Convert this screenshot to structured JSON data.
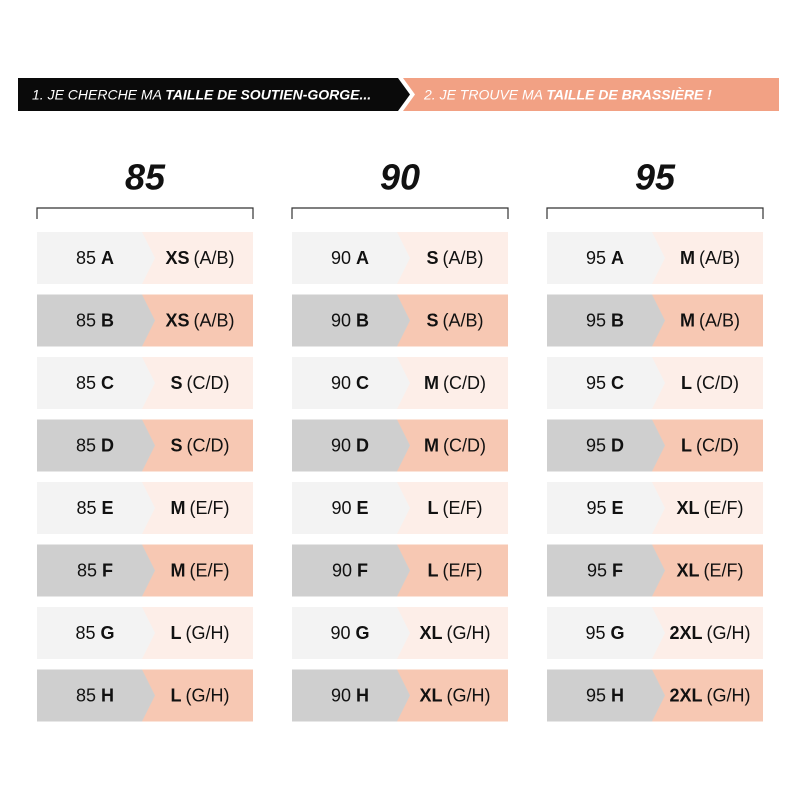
{
  "header": {
    "step1": {
      "text": "1. JE CHERCHE MA",
      "emphasis": "TAILLE DE SOUTIEN-GORGE..."
    },
    "step2": {
      "text": "2. JE TROUVE MA",
      "emphasis": "TAILLE DE BRASSIÈRE !"
    }
  },
  "columns": [
    {
      "title": "85",
      "rows": [
        {
          "band": "85",
          "cup": "A",
          "size": "XS",
          "cups": "(A/B)"
        },
        {
          "band": "85",
          "cup": "B",
          "size": "XS",
          "cups": "(A/B)"
        },
        {
          "band": "85",
          "cup": "C",
          "size": "S",
          "cups": "(C/D)"
        },
        {
          "band": "85",
          "cup": "D",
          "size": "S",
          "cups": "(C/D)"
        },
        {
          "band": "85",
          "cup": "E",
          "size": "M",
          "cups": "(E/F)"
        },
        {
          "band": "85",
          "cup": "F",
          "size": "M",
          "cups": "(E/F)"
        },
        {
          "band": "85",
          "cup": "G",
          "size": "L",
          "cups": "(G/H)"
        },
        {
          "band": "85",
          "cup": "H",
          "size": "L",
          "cups": "(G/H)"
        }
      ]
    },
    {
      "title": "90",
      "rows": [
        {
          "band": "90",
          "cup": "A",
          "size": "S",
          "cups": "(A/B)"
        },
        {
          "band": "90",
          "cup": "B",
          "size": "S",
          "cups": "(A/B)"
        },
        {
          "band": "90",
          "cup": "C",
          "size": "M",
          "cups": "(C/D)"
        },
        {
          "band": "90",
          "cup": "D",
          "size": "M",
          "cups": "(C/D)"
        },
        {
          "band": "90",
          "cup": "E",
          "size": "L",
          "cups": "(E/F)"
        },
        {
          "band": "90",
          "cup": "F",
          "size": "L",
          "cups": "(E/F)"
        },
        {
          "band": "90",
          "cup": "G",
          "size": "XL",
          "cups": "(G/H)"
        },
        {
          "band": "90",
          "cup": "H",
          "size": "XL",
          "cups": "(G/H)"
        }
      ]
    },
    {
      "title": "95",
      "rows": [
        {
          "band": "95",
          "cup": "A",
          "size": "M",
          "cups": "(A/B)"
        },
        {
          "band": "95",
          "cup": "B",
          "size": "M",
          "cups": "(A/B)"
        },
        {
          "band": "95",
          "cup": "C",
          "size": "L",
          "cups": "(C/D)"
        },
        {
          "band": "95",
          "cup": "D",
          "size": "L",
          "cups": "(C/D)"
        },
        {
          "band": "95",
          "cup": "E",
          "size": "XL",
          "cups": "(E/F)"
        },
        {
          "band": "95",
          "cup": "F",
          "size": "XL",
          "cups": "(E/F)"
        },
        {
          "band": "95",
          "cup": "G",
          "size": "2XL",
          "cups": "(G/H)"
        },
        {
          "band": "95",
          "cup": "H",
          "size": "2XL",
          "cups": "(G/H)"
        }
      ]
    }
  ]
}
